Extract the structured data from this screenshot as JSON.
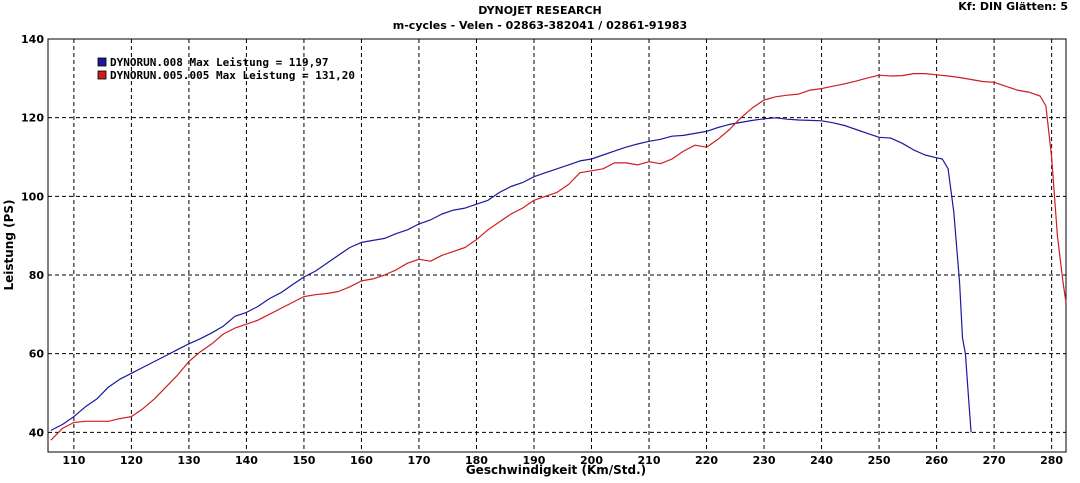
{
  "header": {
    "title": "DYNOJET RESEARCH",
    "subtitle": "m-cycles - Velen - 02863-382041  /  02861-91983",
    "corner": "Kf: DIN  Glätten: 5"
  },
  "chart_data": {
    "type": "line",
    "xlabel": "Geschwindigkeit (Km/Std.)",
    "ylabel": "Leistung (PS)",
    "xlim": [
      105.5,
      282.5
    ],
    "ylim": [
      35,
      140
    ],
    "x_ticks": [
      110,
      120,
      130,
      140,
      150,
      160,
      170,
      180,
      190,
      200,
      210,
      220,
      230,
      240,
      250,
      260,
      270,
      280
    ],
    "y_ticks": [
      40,
      60,
      80,
      100,
      120,
      140
    ],
    "grid": true,
    "legend_position": "top-left",
    "series": [
      {
        "name": "DYNORUN.008 Max Leistung = 119,97",
        "color": "#1a1a9c",
        "x": [
          106,
          108,
          110,
          112,
          114,
          116,
          118,
          120,
          122,
          124,
          126,
          128,
          130,
          132,
          134,
          136,
          138,
          140,
          142,
          144,
          146,
          148,
          150,
          152,
          154,
          156,
          158,
          160,
          162,
          164,
          166,
          168,
          170,
          172,
          174,
          176,
          178,
          180,
          182,
          184,
          186,
          188,
          190,
          192,
          194,
          196,
          198,
          200,
          202,
          204,
          206,
          208,
          210,
          212,
          214,
          216,
          218,
          220,
          222,
          224,
          226,
          228,
          230,
          232,
          234,
          236,
          238,
          240,
          242,
          244,
          246,
          248,
          250,
          252,
          254,
          256,
          258,
          260,
          261,
          262,
          263,
          264,
          264.5,
          265,
          265.5,
          266
        ],
        "values": [
          40.5,
          42,
          44,
          46.5,
          48.5,
          51.5,
          53.5,
          55,
          56.5,
          58,
          59.5,
          61,
          62.5,
          63.8,
          65.3,
          67,
          69.5,
          70.5,
          72,
          74,
          75.5,
          77.5,
          79.5,
          81,
          83,
          85,
          87,
          88.3,
          88.8,
          89.3,
          90.5,
          91.5,
          93,
          94,
          95.5,
          96.5,
          97,
          98,
          99,
          101,
          102.5,
          103.5,
          105,
          106,
          107,
          108,
          109,
          109.5,
          110.5,
          111.5,
          112.5,
          113.3,
          114,
          114.5,
          115.3,
          115.5,
          116,
          116.5,
          117.5,
          118.3,
          118.8,
          119.3,
          119.7,
          119.97,
          119.6,
          119.4,
          119.3,
          119.2,
          118.7,
          118,
          117,
          116,
          115,
          114.8,
          113.5,
          111.8,
          110.5,
          109.8,
          109.5,
          107,
          96,
          78,
          64,
          60,
          50,
          40
        ]
      },
      {
        "name": "DYNORUN.005.005 Max Leistung = 131,20",
        "color": "#cc1f1f",
        "x": [
          106,
          108,
          110,
          112,
          114,
          116,
          118,
          120,
          122,
          124,
          126,
          128,
          130,
          132,
          134,
          136,
          138,
          140,
          142,
          144,
          146,
          148,
          150,
          152,
          154,
          156,
          158,
          160,
          162,
          164,
          166,
          168,
          170,
          172,
          174,
          176,
          178,
          180,
          182,
          184,
          186,
          188,
          190,
          192,
          194,
          196,
          198,
          200,
          202,
          204,
          206,
          208,
          210,
          212,
          214,
          216,
          218,
          220,
          222,
          224,
          226,
          228,
          230,
          232,
          234,
          236,
          238,
          240,
          242,
          244,
          246,
          248,
          250,
          252,
          254,
          256,
          258,
          260,
          262,
          264,
          266,
          268,
          270,
          272,
          274,
          276,
          277,
          278,
          279,
          280,
          281,
          282,
          282.5
        ],
        "values": [
          38,
          41,
          42.5,
          42.8,
          42.8,
          42.8,
          43.5,
          44,
          46,
          48.5,
          51.5,
          54.5,
          58,
          60.5,
          62.5,
          65,
          66.5,
          67.5,
          68.5,
          70,
          71.5,
          73,
          74.5,
          75,
          75.3,
          75.8,
          77,
          78.5,
          79,
          80,
          81.3,
          83,
          84,
          83.5,
          85,
          86,
          87,
          89,
          91.5,
          93.5,
          95.5,
          97,
          99,
          100,
          101,
          103,
          106,
          106.5,
          107,
          108.5,
          108.5,
          108,
          108.8,
          108.3,
          109.5,
          111.5,
          113,
          112.5,
          114.5,
          117,
          120,
          122.5,
          124.5,
          125.3,
          125.7,
          126,
          127,
          127.4,
          128,
          128.6,
          129.3,
          130.1,
          130.8,
          130.6,
          130.7,
          131.2,
          131.2,
          130.9,
          130.6,
          130.2,
          129.7,
          129.2,
          129.0,
          128,
          127,
          126.5,
          126,
          125.5,
          123,
          110,
          90,
          78,
          73
        ]
      }
    ]
  }
}
